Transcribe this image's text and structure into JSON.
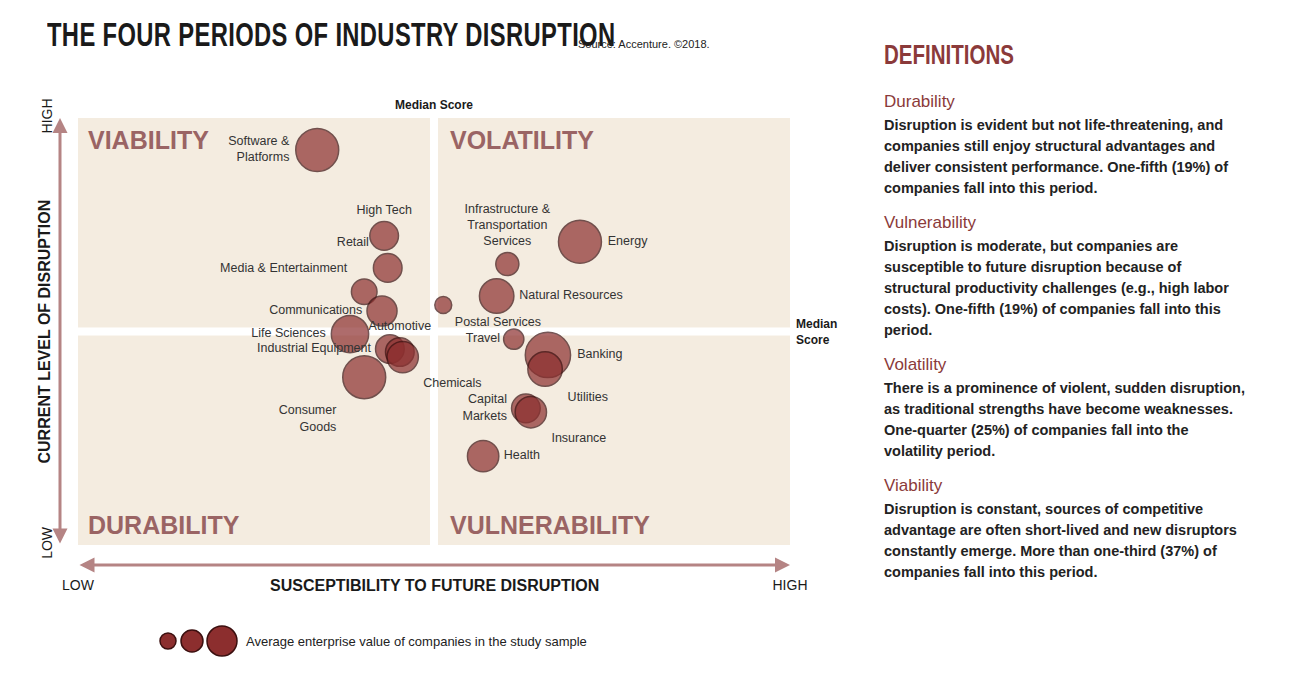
{
  "chart_data": {
    "type": "scatter",
    "title": "THE FOUR PERIODS OF INDUSTRY DISRUPTION",
    "source": "Source: Accenture. ©2018.",
    "x_label": "SUSCEPTIBILITY TO FUTURE DISRUPTION",
    "y_label": "CURRENT LEVEL OF DISRUPTION",
    "xlim": [
      0,
      10
    ],
    "ylim": [
      0,
      10
    ],
    "xticks": [
      {
        "value": 0,
        "label": "LOW"
      },
      {
        "value": 10,
        "label": "HIGH"
      }
    ],
    "yticks": [
      {
        "value": 0,
        "label": "LOW"
      },
      {
        "value": 10,
        "label": "HIGH"
      }
    ],
    "grid": false,
    "marker": "circle",
    "color": "#8c2e2e",
    "labels": [
      "Software &\nPlatforms",
      "High Tech",
      "Retail",
      "Media & Entertainment",
      "Communications",
      "Life Sciences",
      "Industrial Equipment",
      "Automotive",
      "Chemicals",
      "Consumer\nGoods",
      "Infrastructure &\nTransportation\nServices",
      "Energy",
      "Postal Services",
      "Natural Resources",
      "Travel",
      "Banking",
      "Capital\nMarkets",
      "Utilities",
      "Insurance",
      "Health"
    ],
    "x": [
      3.36,
      4.3,
      4.35,
      4.02,
      4.27,
      3.82,
      4.38,
      4.52,
      4.56,
      4.02,
      6.03,
      7.05,
      5.13,
      5.88,
      6.12,
      6.6,
      6.29,
      6.56,
      6.36,
      5.69
    ],
    "y": [
      9.25,
      7.24,
      6.49,
      5.93,
      5.48,
      4.94,
      4.59,
      4.52,
      4.4,
      3.93,
      6.58,
      7.1,
      5.62,
      5.83,
      4.82,
      4.45,
      3.2,
      4.12,
      3.11,
      2.08
    ],
    "sizes": [
      90,
      40,
      40,
      32,
      44,
      68,
      40,
      40,
      48,
      90,
      26,
      90,
      14,
      58,
      20,
      100,
      40,
      58,
      48,
      48
    ],
    "size_label": "Average enterprise value of companies in the study sample",
    "medians": {
      "x": 5,
      "y": 5,
      "x_label": "Median Score",
      "y_label": "Median\nScore"
    },
    "quadrants": [
      {
        "name": "VIABILITY",
        "susceptibility": "low",
        "disruption": "high"
      },
      {
        "name": "VOLATILITY",
        "susceptibility": "high",
        "disruption": "high"
      },
      {
        "name": "DURABILITY",
        "susceptibility": "low",
        "disruption": "low"
      },
      {
        "name": "VULNERABILITY",
        "susceptibility": "high",
        "disruption": "low"
      }
    ]
  },
  "definitions": {
    "heading": "DEFINITIONS",
    "items": [
      {
        "term": "Durability",
        "text": "Disruption is evident but not life-threatening, and companies still enjoy structural advantages and deliver consistent performance. One-fifth (19%) of companies fall into this period."
      },
      {
        "term": "Vulnerability",
        "text": "Disruption is moderate, but companies are susceptible to future disruption because of structural productivity challenges (e.g., high labor costs). One-fifth (19%) of companies fall into this period."
      },
      {
        "term": "Volatility",
        "text": "There is a prominence of violent, sudden disruption, as traditional strengths have become weaknesses. One-quarter (25%) of companies fall into the volatility period."
      },
      {
        "term": "Viability",
        "text": "Disruption is constant, sources of competitive advantage are often short-lived and new disruptors constantly emerge. More than one-third (37%) of companies fall into this period."
      }
    ]
  }
}
